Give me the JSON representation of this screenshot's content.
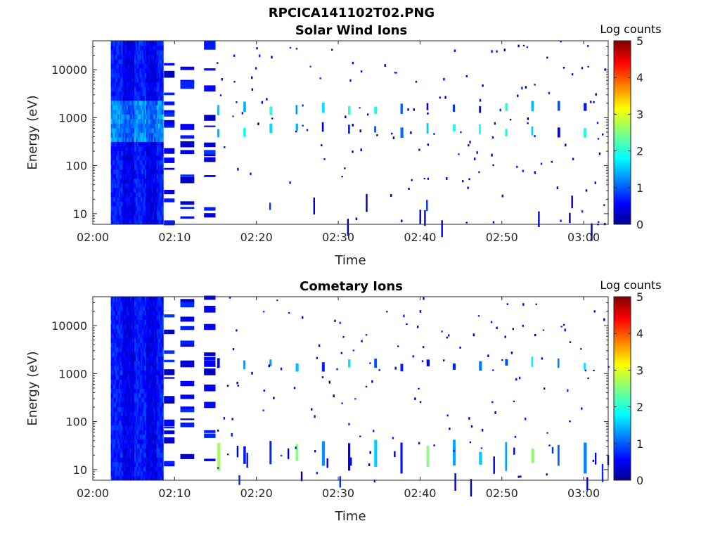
{
  "figure_title": "RPCICA141102T02.PNG",
  "chart_data": [
    {
      "type": "heatmap",
      "title": "Solar Wind Ions",
      "xlabel": "Time",
      "ylabel": "Energy (eV)",
      "x_ticks": [
        "02:00",
        "02:10",
        "02:20",
        "02:30",
        "02:40",
        "02:50",
        "03:00"
      ],
      "x_range_minutes": [
        0,
        63
      ],
      "y_scale": "log",
      "y_ticks": [
        "10",
        "100",
        "1000",
        "10000"
      ],
      "y_range": [
        6,
        40000
      ],
      "colorbar": {
        "label": "Log counts",
        "range": [
          0,
          5
        ],
        "ticks": [
          "0",
          "1",
          "2",
          "3",
          "4",
          "5"
        ],
        "colormap": "jet"
      },
      "dense_block_minutes": [
        2.2,
        8.6
      ],
      "burst_cycle_minutes": 3.2,
      "burst_energies_eV": [
        1550,
        560
      ],
      "grid": false
    },
    {
      "type": "heatmap",
      "title": "Cometary Ions",
      "xlabel": "Time",
      "ylabel": "Energy (eV)",
      "x_ticks": [
        "02:00",
        "02:10",
        "02:20",
        "02:30",
        "02:40",
        "02:50",
        "03:00"
      ],
      "x_range_minutes": [
        0,
        63
      ],
      "y_scale": "log",
      "y_ticks": [
        "10",
        "100",
        "1000",
        "10000"
      ],
      "y_range": [
        6,
        40000
      ],
      "colorbar": {
        "label": "Log counts",
        "range": [
          0,
          5
        ],
        "ticks": [
          "0",
          "1",
          "2",
          "3",
          "4",
          "5"
        ],
        "colormap": "jet"
      },
      "dense_block_minutes": [
        2.2,
        8.6
      ],
      "burst_cycle_minutes": 3.2,
      "burst_energies_eV": [
        1550,
        20
      ],
      "grid": false
    }
  ]
}
